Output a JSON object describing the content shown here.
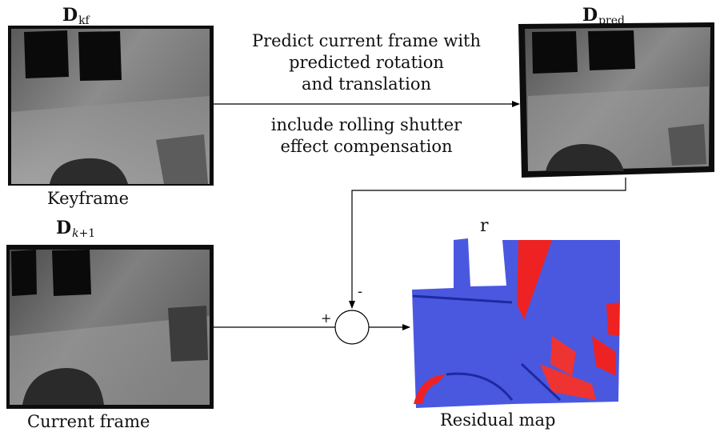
{
  "symbols": {
    "keyframe_main": "D",
    "keyframe_sub": "kf",
    "pred_main": "D",
    "pred_sub": "pred",
    "current_main": "D",
    "current_sub_var": "k",
    "current_sub_rest": "+1",
    "residual": "r"
  },
  "captions": {
    "keyframe": "Keyframe",
    "current": "Current frame",
    "residual": "Residual map"
  },
  "arrow_text": {
    "line1": "Predict current frame with",
    "line2": "predicted rotation",
    "line3": "and translation",
    "line4": "include rolling shutter",
    "line5": "effect compensation"
  },
  "signs": {
    "plus": "+",
    "minus": "-"
  },
  "colors": {
    "depth_dark": "#111111",
    "depth_light": "#9a9a9a",
    "residual_blue": "#4a58e0",
    "residual_red": "#ee2222"
  }
}
